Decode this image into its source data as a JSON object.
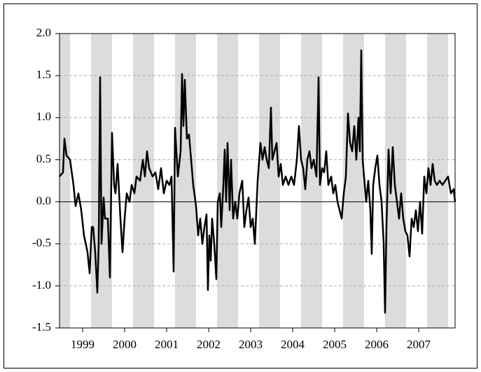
{
  "chart_data": {
    "type": "line",
    "x": [
      1998.95,
      1999.033,
      1999.067,
      1999.117,
      1999.2,
      1999.283,
      1999.333,
      1999.4,
      1999.467,
      1999.533,
      1999.617,
      1999.667,
      1999.717,
      1999.75,
      1999.8,
      1999.85,
      1999.883,
      1999.917,
      1999.95,
      2000.0,
      2000.033,
      2000.1,
      2000.15,
      2000.2,
      2000.25,
      2000.283,
      2000.333,
      2000.4,
      2000.45,
      2000.5,
      2000.55,
      2000.617,
      2000.667,
      2000.733,
      2000.783,
      2000.867,
      2000.933,
      2000.983,
      2001.033,
      2001.083,
      2001.167,
      2001.233,
      2001.3,
      2001.367,
      2001.433,
      2001.5,
      2001.567,
      2001.617,
      2001.667,
      2001.7,
      2001.767,
      2001.833,
      2001.867,
      2001.9,
      2001.933,
      2001.983,
      2002.033,
      2002.083,
      2002.133,
      2002.2,
      2002.25,
      2002.3,
      2002.35,
      2002.4,
      2002.45,
      2002.483,
      2002.517,
      2002.55,
      2002.583,
      2002.633,
      2002.683,
      2002.717,
      2002.767,
      2002.8,
      2002.85,
      2002.883,
      2002.917,
      2002.95,
      2003.0,
      2003.033,
      2003.083,
      2003.133,
      2003.183,
      2003.233,
      2003.3,
      2003.35,
      2003.4,
      2003.45,
      2003.5,
      2003.55,
      2003.6,
      2003.667,
      2003.733,
      2003.783,
      2003.833,
      2003.883,
      2003.933,
      2003.983,
      2004.017,
      2004.067,
      2004.117,
      2004.167,
      2004.217,
      2004.267,
      2004.333,
      2004.4,
      2004.467,
      2004.533,
      2004.6,
      2004.65,
      2004.7,
      2004.75,
      2004.8,
      2004.85,
      2004.9,
      2004.95,
      2005.0,
      2005.067,
      2005.117,
      2005.15,
      2005.2,
      2005.25,
      2005.3,
      2005.35,
      2005.417,
      2005.467,
      2005.517,
      2005.567,
      2005.617,
      2005.667,
      2005.717,
      2005.767,
      2005.817,
      2005.867,
      2005.917,
      2005.967,
      2006.017,
      2006.067,
      2006.1,
      2006.133,
      2006.167,
      2006.2,
      2006.25,
      2006.3,
      2006.35,
      2006.383,
      2006.417,
      2006.467,
      2006.517,
      2006.567,
      2006.617,
      2006.667,
      2006.7,
      2006.733,
      2006.783,
      2006.833,
      2006.883,
      2006.933,
      2006.983,
      2007.033,
      2007.083,
      2007.133,
      2007.183,
      2007.233,
      2007.283,
      2007.333,
      2007.383,
      2007.433,
      2007.483,
      2007.533,
      2007.583,
      2007.633,
      2007.683,
      2007.733,
      2007.783,
      2007.833,
      2007.883,
      2007.933,
      2008.0,
      2008.067,
      2008.133,
      2008.2,
      2008.267,
      2008.333,
      2008.367
    ],
    "series": [
      {
        "color": "#000000",
        "values": [
          0.3,
          0.35,
          0.75,
          0.55,
          0.5,
          0.2,
          -0.05,
          0.1,
          -0.1,
          -0.4,
          -0.6,
          -0.85,
          -0.3,
          -0.3,
          -0.6,
          -1.08,
          -0.5,
          1.48,
          -0.5,
          0.05,
          -0.2,
          -0.2,
          -0.9,
          0.82,
          0.2,
          0.1,
          0.45,
          -0.2,
          -0.6,
          -0.2,
          0.1,
          0.0,
          0.2,
          0.1,
          0.3,
          0.25,
          0.5,
          0.3,
          0.6,
          0.4,
          0.3,
          0.35,
          0.15,
          0.4,
          0.1,
          0.25,
          0.2,
          0.3,
          -0.83,
          0.88,
          0.3,
          0.6,
          1.52,
          0.9,
          1.45,
          0.75,
          0.8,
          0.5,
          0.2,
          -0.05,
          -0.4,
          -0.2,
          -0.5,
          -0.3,
          -0.15,
          -1.05,
          -0.4,
          -0.7,
          -0.2,
          -0.5,
          -0.92,
          0.0,
          0.1,
          -0.3,
          0.2,
          0.62,
          0.0,
          0.7,
          -0.1,
          0.5,
          -0.2,
          0.0,
          -0.2,
          0.1,
          0.25,
          -0.3,
          -0.1,
          0.05,
          -0.3,
          -0.2,
          -0.5,
          0.25,
          0.7,
          0.5,
          0.65,
          0.5,
          0.4,
          1.12,
          0.5,
          0.6,
          0.7,
          0.3,
          0.45,
          0.2,
          0.3,
          0.2,
          0.3,
          0.2,
          0.5,
          0.9,
          0.5,
          0.4,
          0.15,
          0.5,
          0.6,
          0.4,
          0.5,
          0.3,
          1.48,
          0.2,
          0.4,
          0.35,
          0.6,
          0.2,
          0.3,
          0.1,
          0.2,
          0.0,
          -0.1,
          -0.2,
          0.1,
          0.3,
          1.05,
          0.7,
          0.6,
          0.9,
          0.5,
          1.0,
          0.6,
          1.8,
          0.5,
          0.3,
          0.0,
          0.25,
          -0.1,
          -0.62,
          0.2,
          0.4,
          0.55,
          0.2,
          0.0,
          -0.5,
          -1.32,
          -0.3,
          0.62,
          0.1,
          0.65,
          0.2,
          0.0,
          -0.2,
          0.1,
          -0.2,
          -0.35,
          -0.4,
          -0.65,
          -0.2,
          -0.3,
          -0.1,
          -0.35,
          0.0,
          -0.38,
          0.3,
          0.1,
          0.4,
          0.2,
          0.45,
          0.25,
          0.2,
          0.25,
          0.2,
          0.25,
          0.3,
          0.1,
          0.15,
          0.0
        ]
      }
    ],
    "xlim": [
      1998.95,
      2008.367
    ],
    "ylim": [
      -1.5,
      2.0
    ],
    "xticks": [
      {
        "value": 1999.5,
        "label": "1999"
      },
      {
        "value": 2000.5,
        "label": "2000"
      },
      {
        "value": 2001.5,
        "label": "2001"
      },
      {
        "value": 2002.5,
        "label": "2002"
      },
      {
        "value": 2003.5,
        "label": "2003"
      },
      {
        "value": 2004.5,
        "label": "2004"
      },
      {
        "value": 2005.5,
        "label": "2005"
      },
      {
        "value": 2006.5,
        "label": "2006"
      },
      {
        "value": 2007.5,
        "label": "2007"
      }
    ],
    "yticks": [
      {
        "value": -1.5,
        "label": "-1.5"
      },
      {
        "value": -1.0,
        "label": "-1.0"
      },
      {
        "value": -0.5,
        "label": "-0.5"
      },
      {
        "value": 0,
        "label": "0.0"
      },
      {
        "value": 0.5,
        "label": "0.5"
      },
      {
        "value": 1.0,
        "label": "1.0"
      },
      {
        "value": 1.5,
        "label": "1.5"
      },
      {
        "value": 2.0,
        "label": "2.0"
      }
    ],
    "shaded": [
      [
        1998.95,
        1999.2
      ],
      [
        1999.7,
        2000.2
      ],
      [
        2000.7,
        2001.2
      ],
      [
        2001.7,
        2002.2
      ],
      [
        2002.7,
        2003.2
      ],
      [
        2003.7,
        2004.2
      ],
      [
        2004.7,
        2005.2
      ],
      [
        2005.7,
        2006.2
      ],
      [
        2006.7,
        2007.2
      ],
      [
        2007.7,
        2008.2
      ]
    ],
    "shade_color": "#dcdcdc",
    "grid": true
  }
}
